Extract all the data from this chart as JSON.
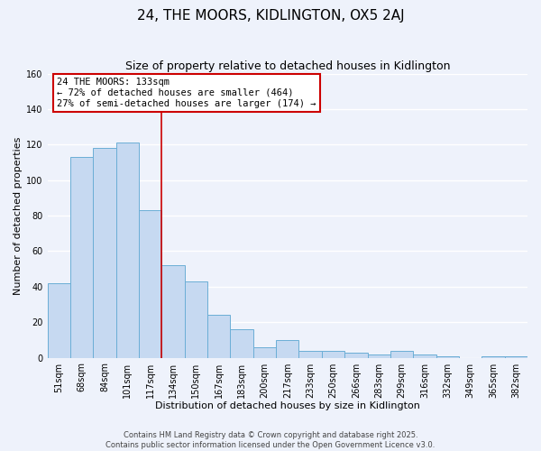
{
  "title": "24, THE MOORS, KIDLINGTON, OX5 2AJ",
  "subtitle": "Size of property relative to detached houses in Kidlington",
  "xlabel": "Distribution of detached houses by size in Kidlington",
  "ylabel": "Number of detached properties",
  "categories": [
    "51sqm",
    "68sqm",
    "84sqm",
    "101sqm",
    "117sqm",
    "134sqm",
    "150sqm",
    "167sqm",
    "183sqm",
    "200sqm",
    "217sqm",
    "233sqm",
    "250sqm",
    "266sqm",
    "283sqm",
    "299sqm",
    "316sqm",
    "332sqm",
    "349sqm",
    "365sqm",
    "382sqm"
  ],
  "values": [
    42,
    113,
    118,
    121,
    83,
    52,
    43,
    24,
    16,
    6,
    10,
    4,
    4,
    3,
    2,
    4,
    2,
    1,
    0,
    1,
    1
  ],
  "bar_color": "#c6d9f1",
  "bar_edge_color": "#6baed6",
  "vline_x_index": 4,
  "vline_color": "#cc0000",
  "annotation_title": "24 THE MOORS: 133sqm",
  "annotation_line1": "← 72% of detached houses are smaller (464)",
  "annotation_line2": "27% of semi-detached houses are larger (174) →",
  "annotation_box_color": "#ffffff",
  "annotation_box_edge": "#cc0000",
  "ylim": [
    0,
    160
  ],
  "yticks": [
    0,
    20,
    40,
    60,
    80,
    100,
    120,
    140,
    160
  ],
  "background_color": "#eef2fb",
  "grid_color": "#ffffff",
  "title_fontsize": 11,
  "subtitle_fontsize": 9,
  "axis_label_fontsize": 8,
  "tick_fontsize": 7,
  "footer_line1": "Contains HM Land Registry data © Crown copyright and database right 2025.",
  "footer_line2": "Contains public sector information licensed under the Open Government Licence v3.0."
}
